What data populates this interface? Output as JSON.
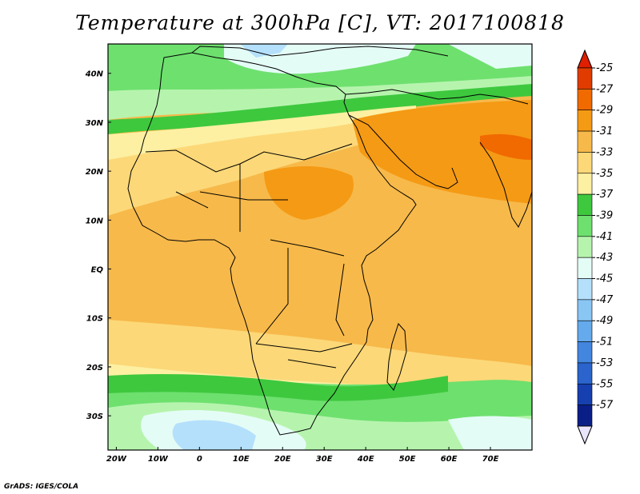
{
  "title": "Temperature at 300hPa [C], VT: 2017100818",
  "credit": "GrADS: IGES/COLA",
  "map": {
    "lon_range": [
      -22,
      80
    ],
    "lat_range": [
      -37,
      46
    ],
    "lat_ticks": [
      {
        "lat": 40,
        "label": "40N"
      },
      {
        "lat": 30,
        "label": "30N"
      },
      {
        "lat": 20,
        "label": "20N"
      },
      {
        "lat": 10,
        "label": "10N"
      },
      {
        "lat": 0,
        "label": "EQ"
      },
      {
        "lat": -10,
        "label": "10S"
      },
      {
        "lat": -20,
        "label": "20S"
      },
      {
        "lat": -30,
        "label": "30S"
      }
    ],
    "lon_ticks": [
      {
        "lon": -20,
        "label": "20W"
      },
      {
        "lon": -10,
        "label": "10W"
      },
      {
        "lon": 0,
        "label": "0"
      },
      {
        "lon": 10,
        "label": "10E"
      },
      {
        "lon": 20,
        "label": "20E"
      },
      {
        "lon": 30,
        "label": "30E"
      },
      {
        "lon": 40,
        "label": "40E"
      },
      {
        "lon": 50,
        "label": "50E"
      },
      {
        "lon": 60,
        "label": "60E"
      },
      {
        "lon": 70,
        "label": "70E"
      }
    ]
  },
  "colorbar": {
    "levels": [
      "-25",
      "-27",
      "-29",
      "-31",
      "-33",
      "-35",
      "-37",
      "-39",
      "-41",
      "-43",
      "-45",
      "-47",
      "-49",
      "-51",
      "-53",
      "-55",
      "-57"
    ],
    "colors": [
      "#e03c00",
      "#f06a00",
      "#f59a14",
      "#f7b94a",
      "#fcd878",
      "#fdf0a2",
      "#3ec83e",
      "#6ee06e",
      "#b6f4ae",
      "#e4fcf6",
      "#b4e0fc",
      "#8ac6f4",
      "#64aaec",
      "#4286e0",
      "#2a64cc",
      "#1640b0",
      "#0a1e88"
    ],
    "top_color": "#e01e00",
    "bottom_color": "#e8e4fc"
  }
}
